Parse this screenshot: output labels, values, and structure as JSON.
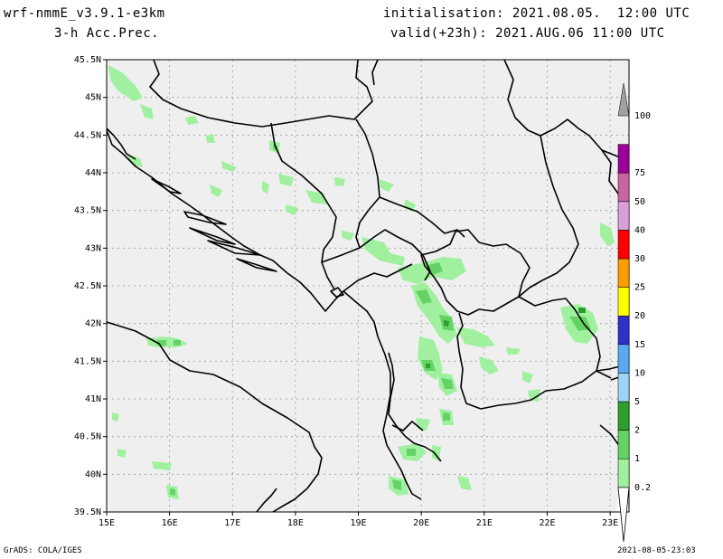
{
  "header": {
    "model": "wrf-nmmE_v3.9.1-e3km",
    "field": "3-h Acc.Prec.",
    "init": "initialisation: 2021.08.05.  12:00 UTC",
    "valid": "valid(+23h): 2021.AUG.06 11:00 UTC"
  },
  "footer": {
    "credit": "GrADS: COLA/IGES",
    "timestamp": "2021-08-05-23:03"
  },
  "axes": {
    "lat_labels": [
      "45.5N",
      "45N",
      "44.5N",
      "44N",
      "43.5N",
      "43N",
      "42.5N",
      "42N",
      "41.5N",
      "41N",
      "40.5N",
      "40N",
      "39.5N"
    ],
    "lon_labels": [
      "15E",
      "16E",
      "17E",
      "18E",
      "19E",
      "20E",
      "21E",
      "22E",
      "23E"
    ]
  },
  "colorbar": {
    "levels": [
      "0.2",
      "1",
      "2",
      "5",
      "10",
      "15",
      "20",
      "25",
      "30",
      "40",
      "50",
      "75",
      "100"
    ],
    "colors": [
      "#a0f0a0",
      "#64d264",
      "#2e9e2e",
      "#9fd3f7",
      "#5aa8f0",
      "#3030c8",
      "#ffff00",
      "#ff9c00",
      "#ff0000",
      "#d8a0d8",
      "#c864a0",
      "#9b009b",
      "#a0a0a0"
    ]
  }
}
